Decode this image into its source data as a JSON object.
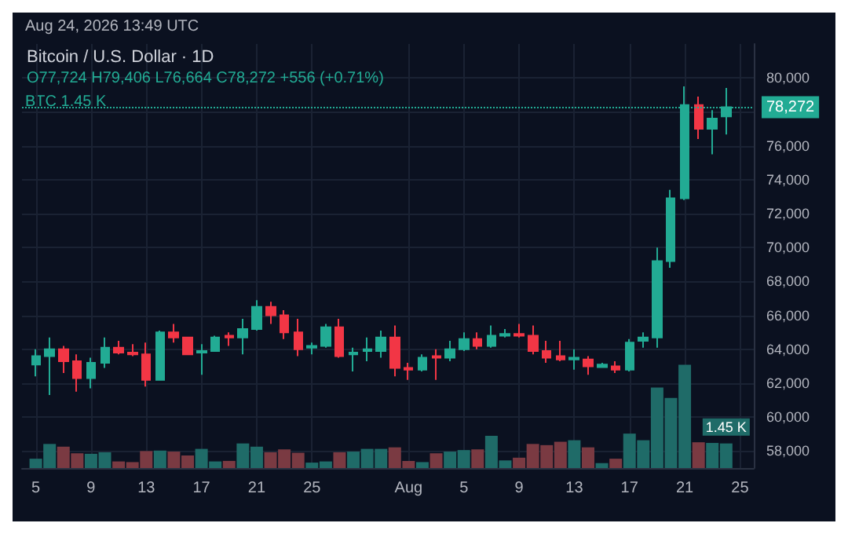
{
  "chart_data": {
    "type": "candlestick",
    "title": "Bitcoin / U.S. Dollar · 1D",
    "subtitle": "O77,724 H79,406 L76,664 C78,272 +556 (+0.71%)",
    "annotations": [
      "Aug 24, 2026 13:49 UTC",
      "BTC 1.45 K"
    ],
    "x": [
      "2026-07-05",
      "2026-07-06",
      "2026-07-07",
      "2026-07-08",
      "2026-07-09",
      "2026-07-10",
      "2026-07-11",
      "2026-07-12",
      "2026-07-13",
      "2026-07-14",
      "2026-07-15",
      "2026-07-16",
      "2026-07-17",
      "2026-07-18",
      "2026-07-19",
      "2026-07-20",
      "2026-07-21",
      "2026-07-22",
      "2026-07-23",
      "2026-07-24",
      "2026-07-25",
      "2026-07-26",
      "2026-07-27",
      "2026-07-28",
      "2026-07-29",
      "2026-07-30",
      "2026-07-31",
      "2026-08-01",
      "2026-08-02",
      "2026-08-03",
      "2026-08-04",
      "2026-08-05",
      "2026-08-06",
      "2026-08-07",
      "2026-08-08",
      "2026-08-09",
      "2026-08-10",
      "2026-08-11",
      "2026-08-12",
      "2026-08-13",
      "2026-08-14",
      "2026-08-15",
      "2026-08-16",
      "2026-08-17",
      "2026-08-18",
      "2026-08-19",
      "2026-08-20",
      "2026-08-21",
      "2026-08-22",
      "2026-08-23",
      "2026-08-24"
    ],
    "ohlc": [
      [
        63100,
        64000,
        62400,
        63600
      ],
      [
        63600,
        64700,
        61300,
        64000
      ],
      [
        64000,
        64200,
        62600,
        63300
      ],
      [
        63300,
        63700,
        61500,
        62300
      ],
      [
        62300,
        63500,
        61700,
        63200
      ],
      [
        63200,
        64700,
        62900,
        64100
      ],
      [
        64100,
        64500,
        63700,
        63800
      ],
      [
        63800,
        64300,
        63600,
        63700
      ],
      [
        63700,
        64400,
        61800,
        62200
      ],
      [
        62200,
        65100,
        62200,
        65000
      ],
      [
        65000,
        65500,
        64400,
        64700
      ],
      [
        64700,
        64700,
        63700,
        63700
      ],
      [
        63800,
        64300,
        62500,
        63900
      ],
      [
        63900,
        64800,
        63900,
        64700
      ],
      [
        64800,
        65000,
        64200,
        64700
      ],
      [
        64700,
        65800,
        63700,
        65200
      ],
      [
        65200,
        66900,
        65100,
        66500
      ],
      [
        66500,
        66800,
        65500,
        66000
      ],
      [
        66000,
        66300,
        64600,
        65000
      ],
      [
        65000,
        65800,
        63600,
        64000
      ],
      [
        64100,
        64400,
        63700,
        64200
      ],
      [
        64200,
        65500,
        64100,
        65300
      ],
      [
        65300,
        65800,
        63500,
        63600
      ],
      [
        63700,
        64100,
        62700,
        63800
      ],
      [
        63900,
        64700,
        63300,
        64000
      ],
      [
        63900,
        65100,
        63500,
        64700
      ],
      [
        64700,
        65400,
        62400,
        62900
      ],
      [
        62900,
        63200,
        62200,
        62800
      ],
      [
        62800,
        63700,
        62700,
        63500
      ],
      [
        63600,
        64000,
        62200,
        63500
      ],
      [
        63500,
        64500,
        63300,
        64000
      ],
      [
        64000,
        65000,
        63900,
        64600
      ],
      [
        64600,
        65000,
        64000,
        64200
      ],
      [
        64200,
        65400,
        64100,
        64800
      ],
      [
        64800,
        65200,
        64700,
        64900
      ],
      [
        64900,
        65500,
        64700,
        64800
      ],
      [
        64800,
        65400,
        63700,
        63900
      ],
      [
        63900,
        64500,
        63200,
        63500
      ],
      [
        63600,
        64500,
        63300,
        63400
      ],
      [
        63400,
        64000,
        62800,
        63500
      ],
      [
        63400,
        63600,
        62500,
        63000
      ],
      [
        62950,
        63200,
        62900,
        63100
      ],
      [
        63000,
        63300,
        62600,
        62800
      ],
      [
        62800,
        64600,
        62700,
        64400
      ],
      [
        64500,
        65000,
        64100,
        64700
      ],
      [
        64700,
        70000,
        64100,
        69200
      ],
      [
        69200,
        73400,
        68800,
        72900
      ],
      [
        72900,
        79500,
        72800,
        78400
      ],
      [
        78400,
        78900,
        76400,
        77000
      ],
      [
        77000,
        78100,
        75500,
        77600
      ],
      [
        77724,
        79406,
        76664,
        78272
      ]
    ],
    "colors": [
      "#22ab94",
      "#22ab94",
      "#f23645",
      "#f23645",
      "#22ab94",
      "#22ab94",
      "#f23645",
      "#f23645",
      "#f23645",
      "#22ab94",
      "#f23645",
      "#f23645",
      "#22ab94",
      "#22ab94",
      "#f23645",
      "#22ab94",
      "#22ab94",
      "#f23645",
      "#f23645",
      "#f23645",
      "#22ab94",
      "#22ab94",
      "#f23645",
      "#22ab94",
      "#22ab94",
      "#22ab94",
      "#f23645",
      "#f23645",
      "#22ab94",
      "#f23645",
      "#22ab94",
      "#22ab94",
      "#f23645",
      "#22ab94",
      "#22ab94",
      "#f23645",
      "#f23645",
      "#f23645",
      "#f23645",
      "#22ab94",
      "#f23645",
      "#22ab94",
      "#f23645",
      "#22ab94",
      "#22ab94",
      "#22ab94",
      "#22ab94",
      "#22ab94",
      "#f23645",
      "#22ab94",
      "#22ab94"
    ],
    "series": [
      {
        "type": "bar",
        "axis": "y2",
        "values": [
          0.55,
          1.42,
          1.26,
          0.87,
          0.84,
          0.93,
          0.39,
          0.35,
          1.0,
          1.03,
          0.97,
          0.74,
          1.13,
          0.39,
          0.42,
          1.45,
          1.26,
          0.93,
          1.1,
          0.9,
          0.32,
          0.39,
          0.93,
          0.97,
          1.13,
          1.13,
          1.22,
          0.42,
          0.35,
          0.87,
          0.97,
          1.06,
          1.1,
          1.9,
          0.45,
          0.61,
          1.42,
          1.35,
          1.55,
          1.64,
          1.22,
          0.29,
          0.55,
          2.03,
          1.64,
          4.74,
          4.13,
          6.09,
          1.52,
          1.48,
          1.45
        ],
        "colors": [
          "#1f6b68",
          "#1f6b68",
          "#7a3a42",
          "#7a3a42",
          "#1f6b68",
          "#1f6b68",
          "#7a3a42",
          "#7a3a42",
          "#7a3a42",
          "#1f6b68",
          "#7a3a42",
          "#7a3a42",
          "#1f6b68",
          "#1f6b68",
          "#7a3a42",
          "#1f6b68",
          "#1f6b68",
          "#7a3a42",
          "#7a3a42",
          "#7a3a42",
          "#1f6b68",
          "#1f6b68",
          "#7a3a42",
          "#1f6b68",
          "#1f6b68",
          "#1f6b68",
          "#7a3a42",
          "#7a3a42",
          "#1f6b68",
          "#7a3a42",
          "#1f6b68",
          "#1f6b68",
          "#7a3a42",
          "#1f6b68",
          "#1f6b68",
          "#7a3a42",
          "#7a3a42",
          "#7a3a42",
          "#7a3a42",
          "#1f6b68",
          "#7a3a42",
          "#1f6b68",
          "#7a3a42",
          "#1f6b68",
          "#1f6b68",
          "#1f6b68",
          "#1f6b68",
          "#1f6b68",
          "#7a3a42",
          "#1f6b68",
          "#1f6b68"
        ],
        "value_labels": [
          null,
          null,
          null,
          null,
          null,
          null,
          null,
          null,
          null,
          null,
          null,
          null,
          null,
          null,
          null,
          null,
          null,
          null,
          null,
          null,
          null,
          null,
          null,
          null,
          null,
          null,
          null,
          null,
          null,
          null,
          null,
          null,
          null,
          null,
          null,
          null,
          null,
          null,
          null,
          null,
          null,
          null,
          null,
          null,
          null,
          null,
          null,
          null,
          null,
          null,
          "1.45 K"
        ]
      }
    ],
    "xlim": [
      "2026-07-04",
      "2026-08-26"
    ],
    "xticks": [
      {
        "value": "2026-07-05",
        "label": "5"
      },
      {
        "value": "2026-07-09",
        "label": "9"
      },
      {
        "value": "2026-07-13",
        "label": "13"
      },
      {
        "value": "2026-07-17",
        "label": "17"
      },
      {
        "value": "2026-07-21",
        "label": "21"
      },
      {
        "value": "2026-07-25",
        "label": "25"
      },
      {
        "value": "2026-08-01",
        "label": "Aug"
      },
      {
        "value": "2026-08-05",
        "label": "5"
      },
      {
        "value": "2026-08-09",
        "label": "9"
      },
      {
        "value": "2026-08-13",
        "label": "13"
      },
      {
        "value": "2026-08-17",
        "label": "17"
      },
      {
        "value": "2026-08-21",
        "label": "21"
      },
      {
        "value": "2026-08-25",
        "label": "25"
      }
    ],
    "ylim": [
      57000,
      82000
    ],
    "yticks": [
      {
        "value": 58000,
        "label": "58,000"
      },
      {
        "value": 60000,
        "label": "60,000"
      },
      {
        "value": 62000,
        "label": "62,000"
      },
      {
        "value": 64000,
        "label": "64,000"
      },
      {
        "value": 66000,
        "label": "66,000"
      },
      {
        "value": 68000,
        "label": "68,000"
      },
      {
        "value": 70000,
        "label": "70,000"
      },
      {
        "value": 72000,
        "label": "72,000"
      },
      {
        "value": 74000,
        "label": "74,000"
      },
      {
        "value": 76000,
        "label": "76,000"
      },
      {
        "value": 78000,
        "label": null
      },
      {
        "value": 80000,
        "label": "80,000"
      }
    ],
    "y2lim": [
      0,
      25
    ],
    "ref_lines": [
      {
        "axis": "y",
        "value": 78272,
        "label": "78,272",
        "color": "#22ab94",
        "line_style": "dotted"
      }
    ],
    "grid": true
  }
}
